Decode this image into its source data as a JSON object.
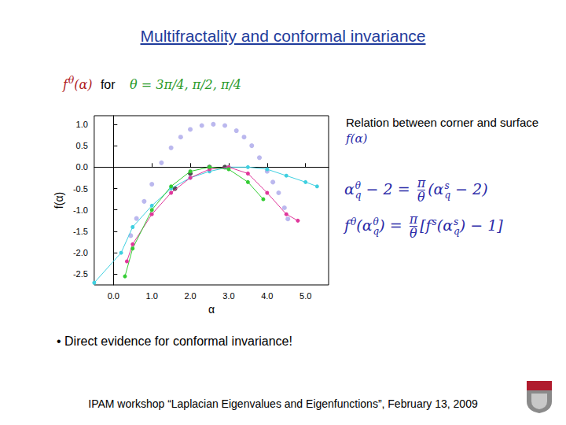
{
  "chart_data": {
    "type": "line",
    "x_label": "α",
    "y_label": "f(α)",
    "xlim": [
      -0.5,
      5.6
    ],
    "ylim": [
      -2.75,
      1.2
    ],
    "xticks": [
      {
        "value": 0,
        "label": "0.0"
      },
      {
        "value": 1,
        "label": "1.0"
      },
      {
        "value": 2,
        "label": "2.0"
      },
      {
        "value": 3,
        "label": "3.0"
      },
      {
        "value": 4,
        "label": "4.0"
      },
      {
        "value": 5,
        "label": "5.0"
      }
    ],
    "yticks": [
      {
        "value": 1,
        "label": "1.0"
      },
      {
        "value": 0.5,
        "label": "0.5"
      },
      {
        "value": 0,
        "label": "0.0"
      },
      {
        "value": -0.5,
        "label": "-0.5"
      },
      {
        "value": -1,
        "label": "-1.0"
      },
      {
        "value": -1.5,
        "label": "-1.5"
      },
      {
        "value": -2,
        "label": "-2.0"
      },
      {
        "value": -2.5,
        "label": "-2.5"
      }
    ],
    "grid": false,
    "series": [
      {
        "type": "scatter",
        "color": "#aaa6ea",
        "marker": "circle",
        "values": [
          [
            0.45,
            -1.6
          ],
          [
            0.6,
            -1.2
          ],
          [
            0.8,
            -0.8
          ],
          [
            1.0,
            -0.4
          ],
          [
            1.25,
            0.1
          ],
          [
            1.5,
            0.45
          ],
          [
            1.75,
            0.7
          ],
          [
            2.0,
            0.88
          ],
          [
            2.3,
            0.97
          ],
          [
            2.6,
            1.0
          ],
          [
            2.9,
            0.97
          ],
          [
            3.2,
            0.85
          ],
          [
            3.4,
            0.7
          ],
          [
            3.6,
            0.5
          ],
          [
            3.8,
            0.22
          ],
          [
            4.0,
            -0.1
          ],
          [
            4.15,
            -0.35
          ],
          [
            4.3,
            -0.6
          ],
          [
            4.45,
            -0.95
          ],
          [
            4.54,
            -1.21
          ]
        ]
      },
      {
        "type": "line",
        "color": "#3fd0e0",
        "marker": "circle",
        "line_style": "solid",
        "values": [
          [
            -0.5,
            -2.7
          ],
          [
            0.2,
            -2.0
          ],
          [
            0.5,
            -1.4
          ],
          [
            1.0,
            -0.9
          ],
          [
            1.5,
            -0.5
          ],
          [
            2.0,
            -0.25
          ],
          [
            2.5,
            -0.1
          ],
          [
            3.0,
            0.0
          ],
          [
            3.5,
            0.0
          ],
          [
            4.0,
            -0.05
          ],
          [
            4.5,
            -0.2
          ],
          [
            5.0,
            -0.35
          ],
          [
            5.3,
            -0.45
          ]
        ]
      },
      {
        "type": "line",
        "color": "#e0379b",
        "marker": "circle",
        "line_style": "solid",
        "values": [
          [
            0.35,
            -2.2
          ],
          [
            0.5,
            -1.8
          ],
          [
            1.0,
            -1.1
          ],
          [
            1.5,
            -0.6
          ],
          [
            2.0,
            -0.25
          ],
          [
            2.5,
            -0.05
          ],
          [
            3.0,
            0.0
          ],
          [
            3.5,
            -0.15
          ],
          [
            4.0,
            -0.6
          ],
          [
            4.5,
            -1.1
          ],
          [
            4.8,
            -1.25
          ]
        ]
      },
      {
        "type": "line",
        "color": "#33cc33",
        "marker": "circle",
        "line_style": "solid",
        "values": [
          [
            0.3,
            -2.55
          ],
          [
            0.5,
            -1.9
          ],
          [
            1.0,
            -1.0
          ],
          [
            1.5,
            -0.45
          ],
          [
            2.0,
            -0.1
          ],
          [
            2.5,
            0.0
          ],
          [
            3.0,
            -0.05
          ],
          [
            3.5,
            -0.35
          ],
          [
            3.9,
            -0.75
          ]
        ]
      },
      {
        "type": "scatter",
        "color": "#222222",
        "marker": "circle",
        "values": [
          [
            1.6,
            -0.5
          ],
          [
            2.0,
            -0.15
          ],
          [
            2.5,
            0.0
          ],
          [
            2.9,
            0.0
          ]
        ]
      }
    ]
  },
  "slide": {
    "title": "Multifractality and conformal invariance",
    "caption_math": [
      "f",
      {
        "sup": "θ"
      },
      "(α)"
    ],
    "caption_word": "for",
    "caption_theta": "θ = 3π/4, π/2, π/4",
    "relation_text": "Relation between corner and surface",
    "relation_math": "f(α)",
    "equation_1": [
      "α",
      {
        "sup": "θ",
        "sub": "q"
      },
      " − 2 = ",
      {
        "num": "π",
        "den": "θ"
      },
      "(α",
      {
        "sup": "s",
        "sub": "q"
      },
      " − 2)"
    ],
    "equation_2": [
      "f",
      {
        "sup": "θ"
      },
      "(α",
      {
        "sup": "θ",
        "sub": "q"
      },
      ") = ",
      {
        "num": "π",
        "den": "θ"
      },
      "[f",
      {
        "sup": "s"
      },
      "(α",
      {
        "sup": "s",
        "sub": "q"
      },
      ") − 1]"
    ],
    "bullet": "• Direct evidence for conformal invariance!",
    "footer": "IPAM workshop “Laplacian Eigenvalues and Eigenfunctions”, February 13, 2009"
  }
}
